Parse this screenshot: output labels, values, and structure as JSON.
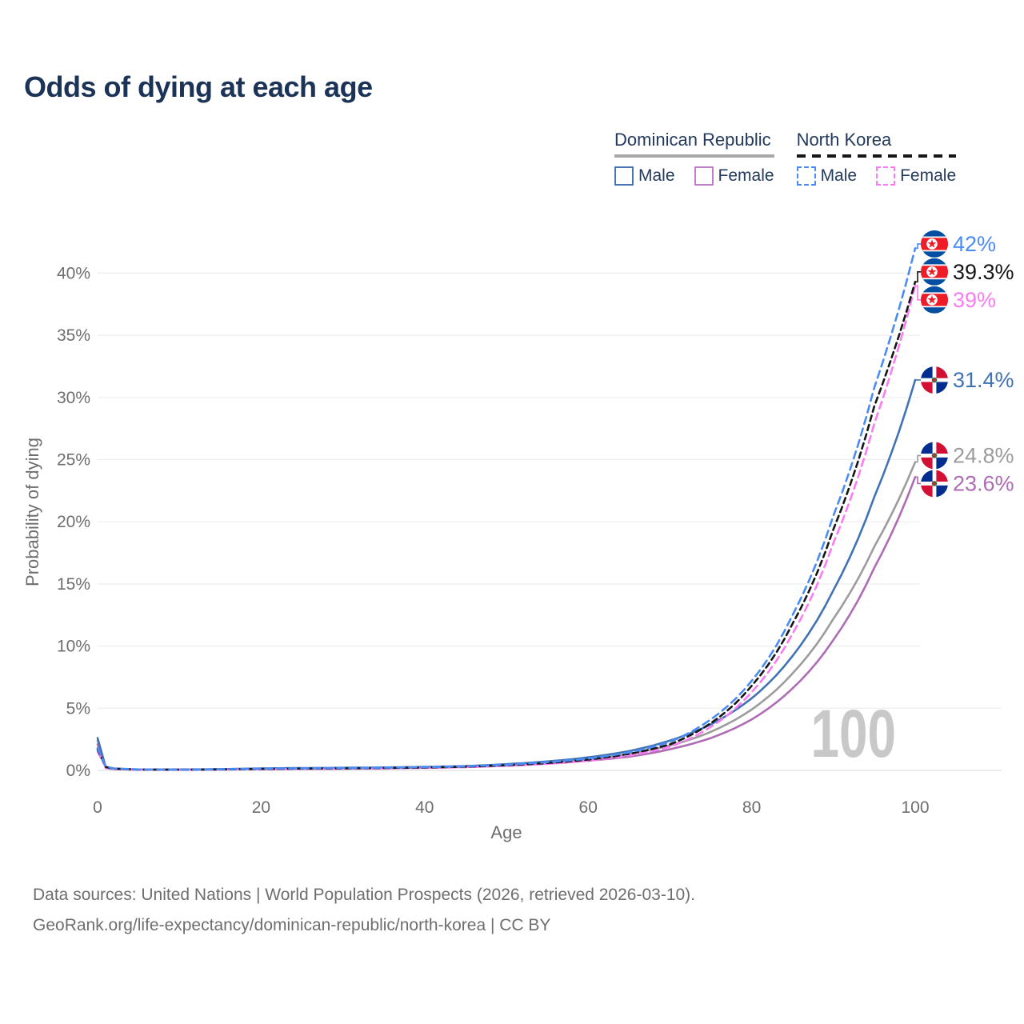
{
  "title": "Odds of dying at each age",
  "legend": {
    "groups": [
      {
        "name": "Dominican Republic",
        "line_style": "solid",
        "line_color": "#a8a8a8",
        "items": [
          {
            "label": "Male",
            "color": "#4a77b5"
          },
          {
            "label": "Female",
            "color": "#c07fc5"
          }
        ]
      },
      {
        "name": "North Korea",
        "line_style": "dashed",
        "line_color": "#161616",
        "items": [
          {
            "label": "Male",
            "color": "#4b8bf5"
          },
          {
            "label": "Female",
            "color": "#fb7bf3"
          }
        ]
      }
    ]
  },
  "chart_data": {
    "type": "line",
    "title": "Odds of dying at each age",
    "xlabel": "Age",
    "ylabel": "Probability of dying",
    "x_ticks": [
      0,
      20,
      40,
      60,
      80,
      100
    ],
    "y_ticks": [
      0,
      5,
      10,
      15,
      20,
      25,
      30,
      35,
      40
    ],
    "xlim": [
      0,
      100
    ],
    "ylim": [
      0,
      42.5
    ],
    "grid": true,
    "watermark": "100",
    "x": [
      0,
      1,
      2,
      5,
      10,
      15,
      20,
      25,
      30,
      35,
      40,
      45,
      50,
      55,
      60,
      65,
      70,
      75,
      80,
      85,
      90,
      95,
      100
    ],
    "series": [
      {
        "id": "dr_total",
        "name": "Dominican Republic",
        "color": "#9c9c9c",
        "dash": null,
        "end_label": "24.8%",
        "end_value": 24.8,
        "flag": "dr",
        "values": [
          2.4,
          0.22,
          0.12,
          0.07,
          0.06,
          0.09,
          0.13,
          0.15,
          0.17,
          0.2,
          0.24,
          0.31,
          0.44,
          0.63,
          0.91,
          1.32,
          2.0,
          3.1,
          4.9,
          7.8,
          12.2,
          18.0,
          24.8
        ]
      },
      {
        "id": "dr_female",
        "name": "Dominican Republic Female",
        "color": "#ae6cb4",
        "dash": null,
        "end_label": "23.6%",
        "end_value": 23.6,
        "flag": "dr",
        "values": [
          2.1,
          0.2,
          0.11,
          0.06,
          0.05,
          0.07,
          0.1,
          0.12,
          0.14,
          0.17,
          0.21,
          0.27,
          0.38,
          0.54,
          0.78,
          1.1,
          1.7,
          2.6,
          4.1,
          6.6,
          10.5,
          16.3,
          23.6
        ]
      },
      {
        "id": "dr_male",
        "name": "Dominican Republic Male",
        "color": "#4173b4",
        "dash": null,
        "end_label": "31.4%",
        "end_value": 31.4,
        "flag": "dr",
        "values": [
          2.6,
          0.25,
          0.14,
          0.08,
          0.07,
          0.1,
          0.16,
          0.19,
          0.21,
          0.24,
          0.28,
          0.35,
          0.5,
          0.72,
          1.05,
          1.55,
          2.4,
          3.7,
          5.8,
          9.2,
          14.5,
          22.0,
          31.4
        ]
      },
      {
        "id": "nk_female",
        "name": "North Korea Female",
        "color": "#fb7bf3",
        "dash": "9 6",
        "end_label": "39%",
        "end_value": 39.0,
        "flag": "nk",
        "values": [
          1.5,
          0.25,
          0.14,
          0.06,
          0.05,
          0.07,
          0.1,
          0.12,
          0.14,
          0.16,
          0.2,
          0.26,
          0.37,
          0.53,
          0.78,
          1.2,
          1.9,
          3.5,
          6.3,
          11.0,
          18.3,
          27.9,
          39.0
        ]
      },
      {
        "id": "nk_total",
        "name": "North Korea",
        "color": "#161616",
        "dash": "7 5",
        "end_label": "39.3%",
        "end_value": 39.3,
        "flag": "nk",
        "values": [
          1.7,
          0.28,
          0.15,
          0.07,
          0.055,
          0.08,
          0.12,
          0.145,
          0.165,
          0.19,
          0.23,
          0.3,
          0.42,
          0.6,
          0.87,
          1.33,
          2.1,
          3.8,
          6.8,
          11.8,
          19.4,
          29.3,
          39.3
        ]
      },
      {
        "id": "nk_male",
        "name": "North Korea Male",
        "color": "#4b8bf5",
        "dash": "9 6",
        "end_label": "42%",
        "end_value": 42.0,
        "flag": "nk",
        "values": [
          1.8,
          0.3,
          0.16,
          0.08,
          0.06,
          0.09,
          0.14,
          0.17,
          0.19,
          0.22,
          0.26,
          0.33,
          0.46,
          0.66,
          0.95,
          1.45,
          2.3,
          4.1,
          7.2,
          12.5,
          20.5,
          30.8,
          42.0
        ]
      }
    ]
  },
  "footer": {
    "line1": "Data sources: United Nations | World Population Prospects (2026, retrieved 2026-03-10).",
    "line2": "GeoRank.org/life-expectancy/dominican-republic/north-korea | CC BY"
  }
}
